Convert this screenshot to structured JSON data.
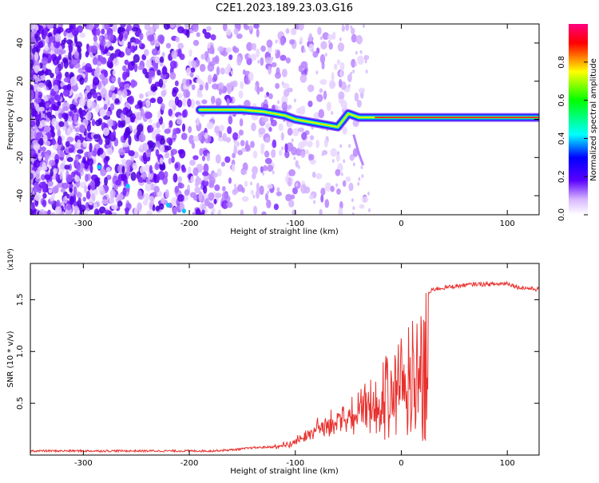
{
  "figure": {
    "title": "C2E1.2023.189.23.03.G16"
  },
  "colors": {
    "background": "#ffffff",
    "axis": "#000000",
    "snr_line": "#e8312e",
    "scatter_purple": "#6a00ff",
    "scatter_light": "#c9a0ff"
  },
  "colorbar": {
    "label": "Normalized spectral amplitude",
    "ticks": [
      "0.0",
      "0.2",
      "0.4",
      "0.6",
      "0.8"
    ],
    "tick_values": [
      0.0,
      0.2,
      0.4,
      0.6,
      0.8
    ],
    "range": [
      0,
      1
    ],
    "colormap": [
      "#ffffff",
      "#d9b8ff",
      "#5a00ff",
      "#0000ff",
      "#00ffff",
      "#00ff00",
      "#ffff00",
      "#ff0000",
      "#ff0080"
    ]
  },
  "chart_data": [
    {
      "type": "heatmap",
      "name": "spectrogram",
      "xlabel": "Height of straight line (km)",
      "ylabel": "Frequency (Hz)",
      "xlim": [
        -350,
        130
      ],
      "ylim": [
        -50,
        50
      ],
      "xticks": [
        -300,
        -200,
        -100,
        0,
        100
      ],
      "xtick_labels": [
        "-300",
        "-200",
        "-100",
        "0",
        "100"
      ],
      "yticks": [
        -40,
        -20,
        0,
        20,
        40
      ],
      "ytick_labels": [
        "-40",
        "-20",
        "0",
        "20",
        "40"
      ],
      "signal_track": {
        "x": [
          -190,
          -170,
          -150,
          -130,
          -110,
          -100,
          -90,
          -80,
          -70,
          -60,
          -50,
          -40,
          -30,
          -20,
          0,
          20,
          50,
          80,
          100,
          130
        ],
        "y": [
          5,
          5,
          5,
          4,
          2,
          0,
          -1,
          -2,
          -3,
          -4,
          3,
          1,
          1,
          1,
          1,
          1,
          1,
          1,
          1,
          1
        ]
      }
    },
    {
      "type": "line",
      "name": "snr",
      "xlabel": "Height of straight line (km)",
      "ylabel": "SNR (10 * v/v)",
      "yscale_label": "(x10⁴)",
      "xlim": [
        -350,
        130
      ],
      "ylim": [
        0,
        1.85
      ],
      "xticks": [
        -300,
        -200,
        -100,
        0,
        100
      ],
      "xtick_labels": [
        "-300",
        "-200",
        "-100",
        "0",
        "100"
      ],
      "yticks": [
        0.5,
        1.0,
        1.5
      ],
      "ytick_labels": [
        "0.5",
        "1.0",
        "1.5"
      ],
      "x": [
        -350,
        -300,
        -250,
        -200,
        -180,
        -160,
        -140,
        -120,
        -110,
        -100,
        -90,
        -80,
        -70,
        -60,
        -50,
        -40,
        -30,
        -20,
        -10,
        0,
        10,
        20,
        30,
        50,
        70,
        90,
        100,
        110,
        130
      ],
      "y": [
        0.04,
        0.04,
        0.04,
        0.04,
        0.04,
        0.05,
        0.07,
        0.08,
        0.1,
        0.15,
        0.2,
        0.3,
        0.35,
        0.4,
        0.45,
        0.55,
        0.7,
        0.85,
        1.0,
        1.2,
        1.4,
        1.5,
        1.6,
        1.63,
        1.65,
        1.65,
        1.66,
        1.62,
        1.6
      ]
    }
  ]
}
